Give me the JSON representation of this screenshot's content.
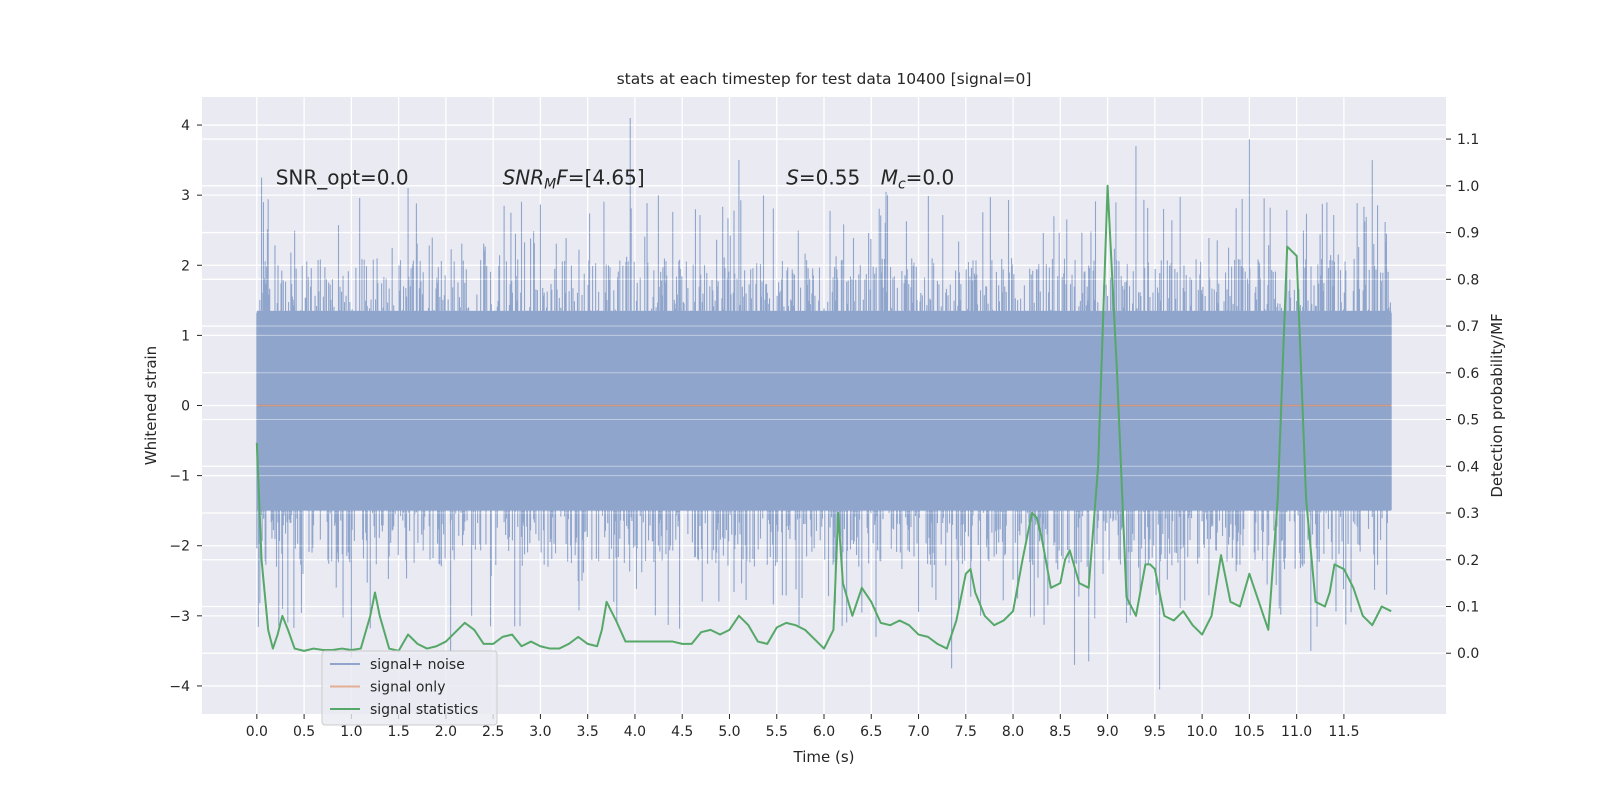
{
  "chart_data": {
    "type": "line",
    "title": "stats at each timestep for test data 10400 [signal=0]",
    "xlabel": "Time (s)",
    "ylabel": "Whitened strain",
    "y2label": "Detection probability/MF",
    "xlim": [
      -0.58,
      12.58
    ],
    "ylim": [
      -4.4,
      4.4
    ],
    "y2lim": [
      -0.13,
      1.19
    ],
    "grid": true,
    "legend_position": "lower-left",
    "x_ticks": [
      0.0,
      0.5,
      1.0,
      1.5,
      2.0,
      2.5,
      3.0,
      3.5,
      4.0,
      4.5,
      5.0,
      5.5,
      6.0,
      6.5,
      7.0,
      7.5,
      8.0,
      8.5,
      9.0,
      9.5,
      10.0,
      10.5,
      11.0,
      11.5
    ],
    "x_tick_labels": [
      "0.0",
      "0.5",
      "1.0",
      "1.5",
      "2.0",
      "2.5",
      "3.0",
      "3.5",
      "4.0",
      "4.5",
      "5.0",
      "5.5",
      "6.0",
      "6.5",
      "7.0",
      "7.5",
      "8.0",
      "8.5",
      "9.0",
      "9.5",
      "10.0",
      "10.5",
      "11.0",
      "11.5"
    ],
    "y_ticks": [
      -4,
      -3,
      -2,
      -1,
      0,
      1,
      2,
      3,
      4
    ],
    "y_tick_labels": [
      "−4",
      "−3",
      "−2",
      "−1",
      "0",
      "1",
      "2",
      "3",
      "4"
    ],
    "y2_ticks": [
      0.0,
      0.1,
      0.2,
      0.3,
      0.4,
      0.5,
      0.6,
      0.7,
      0.8,
      0.9,
      1.0,
      1.1
    ],
    "y2_tick_labels": [
      "0.0",
      "0.1",
      "0.2",
      "0.3",
      "0.4",
      "0.5",
      "0.6",
      "0.7",
      "0.8",
      "0.9",
      "1.0",
      "1.1"
    ],
    "annotations": [
      {
        "prefix": "SNR_opt=0.0",
        "sub": "",
        "suffix": "",
        "x": 0.2,
        "y": 3.25
      },
      {
        "prefix": "SNR",
        "sub": "M",
        "suffix": "F=[4.65]",
        "x": 2.6,
        "y": 3.25
      },
      {
        "prefix": "S",
        "sub": "",
        "suffix": "=0.55",
        "x": 5.6,
        "y": 3.25
      },
      {
        "prefix": "M",
        "sub": "c",
        "suffix": "=0.0",
        "x": 6.6,
        "y": 3.25
      }
    ],
    "series": [
      {
        "name": "signal+ noise",
        "color": "#8fa5cc",
        "axis": "left",
        "render": "dense-noise",
        "time_range": [
          0.0,
          12.0
        ],
        "core_envelope": [
          -1.5,
          1.35
        ],
        "peaks": [
          [
            0.05,
            3.25
          ],
          [
            0.07,
            2.9
          ],
          [
            1.6,
            3.1
          ],
          [
            3.95,
            4.1
          ],
          [
            5.1,
            3.5
          ],
          [
            9.3,
            3.7
          ],
          [
            10.5,
            3.8
          ],
          [
            11.8,
            3.5
          ],
          [
            11.95,
            2.45
          ]
        ],
        "troughs": [
          [
            1.0,
            -3.6
          ],
          [
            2.05,
            -3.5
          ],
          [
            6.55,
            -3.3
          ],
          [
            7.35,
            -3.75
          ],
          [
            8.65,
            -3.7
          ],
          [
            8.8,
            -3.65
          ],
          [
            9.2,
            -3.1
          ],
          [
            9.55,
            -4.05
          ],
          [
            11.15,
            -3.5
          ],
          [
            11.95,
            -1.5
          ]
        ]
      },
      {
        "name": "signal only",
        "color": "#dd8452",
        "axis": "left",
        "x": [
          0.0,
          12.0
        ],
        "values": [
          0.0,
          0.0
        ]
      },
      {
        "name": "signal statistics",
        "color": "#55a868",
        "axis": "right",
        "x": [
          0.0,
          0.05,
          0.12,
          0.17,
          0.22,
          0.27,
          0.33,
          0.4,
          0.5,
          0.6,
          0.7,
          0.8,
          0.9,
          1.0,
          1.1,
          1.2,
          1.25,
          1.3,
          1.4,
          1.5,
          1.6,
          1.7,
          1.8,
          1.9,
          2.0,
          2.1,
          2.2,
          2.3,
          2.4,
          2.5,
          2.6,
          2.7,
          2.8,
          2.9,
          3.0,
          3.1,
          3.2,
          3.3,
          3.4,
          3.5,
          3.6,
          3.65,
          3.7,
          3.8,
          3.9,
          4.0,
          4.1,
          4.2,
          4.3,
          4.4,
          4.5,
          4.6,
          4.7,
          4.8,
          4.9,
          5.0,
          5.1,
          5.2,
          5.3,
          5.4,
          5.5,
          5.6,
          5.7,
          5.8,
          5.9,
          6.0,
          6.1,
          6.15,
          6.2,
          6.3,
          6.4,
          6.5,
          6.6,
          6.7,
          6.8,
          6.9,
          7.0,
          7.1,
          7.2,
          7.3,
          7.4,
          7.5,
          7.55,
          7.6,
          7.7,
          7.8,
          7.9,
          8.0,
          8.1,
          8.2,
          8.25,
          8.3,
          8.4,
          8.5,
          8.55,
          8.6,
          8.7,
          8.8,
          8.9,
          9.0,
          9.1,
          9.2,
          9.3,
          9.4,
          9.45,
          9.5,
          9.6,
          9.7,
          9.8,
          9.9,
          10.0,
          10.1,
          10.2,
          10.3,
          10.4,
          10.5,
          10.6,
          10.7,
          10.8,
          10.9,
          11.0,
          11.1,
          11.2,
          11.3,
          11.35,
          11.4,
          11.5,
          11.6,
          11.7,
          11.8,
          11.9,
          12.0
        ],
        "values": [
          0.45,
          0.2,
          0.05,
          0.01,
          0.04,
          0.08,
          0.05,
          0.01,
          0.005,
          0.01,
          0.007,
          0.007,
          0.01,
          0.007,
          0.01,
          0.08,
          0.13,
          0.08,
          0.01,
          0.005,
          0.04,
          0.02,
          0.01,
          0.015,
          0.025,
          0.045,
          0.065,
          0.05,
          0.02,
          0.02,
          0.035,
          0.04,
          0.015,
          0.025,
          0.015,
          0.01,
          0.01,
          0.02,
          0.035,
          0.02,
          0.015,
          0.05,
          0.11,
          0.07,
          0.025,
          0.025,
          0.025,
          0.025,
          0.025,
          0.025,
          0.02,
          0.02,
          0.045,
          0.05,
          0.04,
          0.05,
          0.08,
          0.06,
          0.025,
          0.02,
          0.055,
          0.065,
          0.06,
          0.05,
          0.03,
          0.01,
          0.05,
          0.3,
          0.15,
          0.08,
          0.14,
          0.11,
          0.065,
          0.06,
          0.07,
          0.06,
          0.04,
          0.035,
          0.02,
          0.01,
          0.07,
          0.17,
          0.18,
          0.13,
          0.08,
          0.06,
          0.07,
          0.09,
          0.2,
          0.3,
          0.29,
          0.25,
          0.14,
          0.15,
          0.2,
          0.22,
          0.15,
          0.14,
          0.4,
          1.0,
          0.6,
          0.12,
          0.08,
          0.19,
          0.19,
          0.18,
          0.08,
          0.07,
          0.09,
          0.06,
          0.04,
          0.08,
          0.21,
          0.11,
          0.1,
          0.17,
          0.11,
          0.05,
          0.33,
          0.87,
          0.85,
          0.33,
          0.11,
          0.1,
          0.13,
          0.19,
          0.18,
          0.14,
          0.08,
          0.06,
          0.1,
          0.09
        ]
      }
    ]
  }
}
